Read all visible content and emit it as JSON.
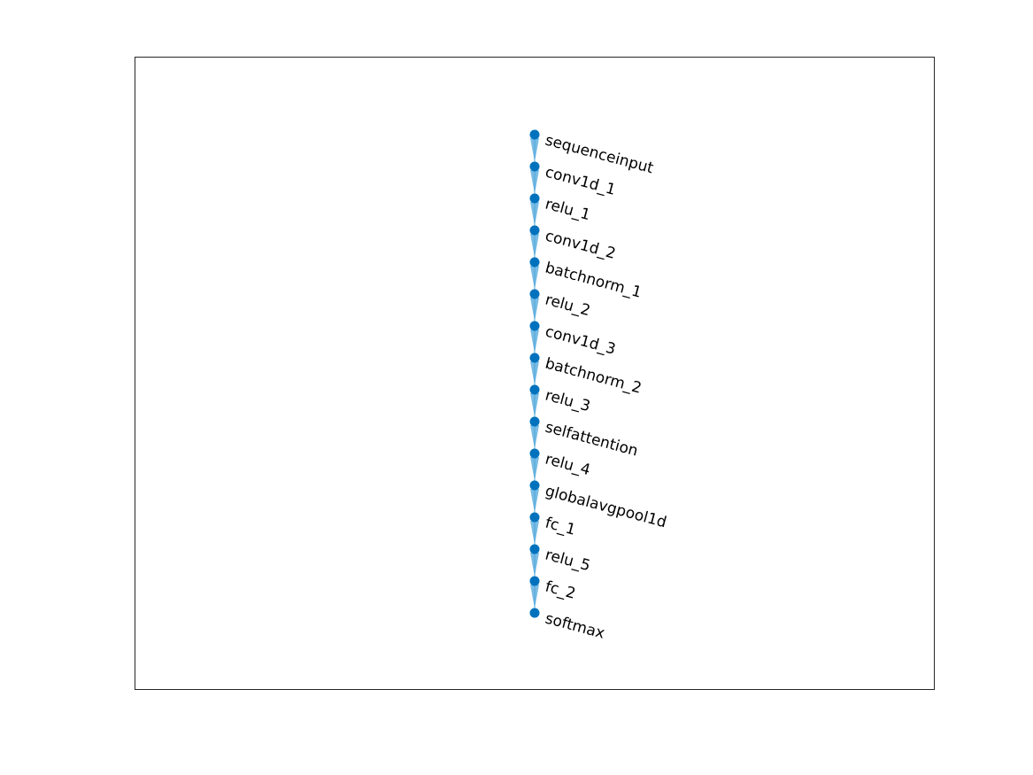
{
  "figure": {
    "type": "layer-graph",
    "direction": "top-to-bottom",
    "node_color": "#0072BD",
    "edge_color": "#4DA6DB",
    "axes_color": "#262626",
    "background": "#ffffff"
  },
  "nodes": [
    {
      "label": "sequenceinput"
    },
    {
      "label": "conv1d_1"
    },
    {
      "label": "relu_1"
    },
    {
      "label": "conv1d_2"
    },
    {
      "label": "batchnorm_1"
    },
    {
      "label": "relu_2"
    },
    {
      "label": "conv1d_3"
    },
    {
      "label": "batchnorm_2"
    },
    {
      "label": "relu_3"
    },
    {
      "label": "selfattention"
    },
    {
      "label": "relu_4"
    },
    {
      "label": "globalavgpool1d"
    },
    {
      "label": "fc_1"
    },
    {
      "label": "relu_5"
    },
    {
      "label": "fc_2"
    },
    {
      "label": "softmax"
    }
  ],
  "edges": [
    {
      "from": 0,
      "to": 1
    },
    {
      "from": 1,
      "to": 2
    },
    {
      "from": 2,
      "to": 3
    },
    {
      "from": 3,
      "to": 4
    },
    {
      "from": 4,
      "to": 5
    },
    {
      "from": 5,
      "to": 6
    },
    {
      "from": 6,
      "to": 7
    },
    {
      "from": 7,
      "to": 8
    },
    {
      "from": 8,
      "to": 9
    },
    {
      "from": 9,
      "to": 10
    },
    {
      "from": 10,
      "to": 11
    },
    {
      "from": 11,
      "to": 12
    },
    {
      "from": 12,
      "to": 13
    },
    {
      "from": 13,
      "to": 14
    },
    {
      "from": 14,
      "to": 15
    }
  ]
}
